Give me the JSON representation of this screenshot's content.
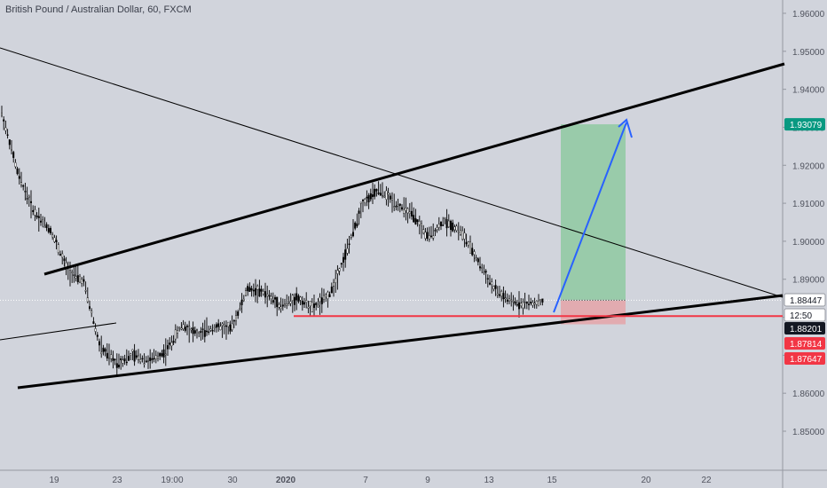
{
  "chart_data": {
    "type": "candlestick",
    "title": "British Pound / Australian Dollar, 60, FXCM",
    "background": "#d1d4dc",
    "grid": false,
    "ylim": [
      1.8425,
      1.9645
    ],
    "y_ticks": [
      1.85,
      1.86,
      1.87,
      1.88,
      1.89,
      1.9,
      1.91,
      1.92,
      1.93,
      1.94,
      1.95,
      1.96
    ],
    "y_tick_labels": [
      "1.85000",
      "1.86000",
      "1.87000",
      "1.88000",
      "1.89000",
      "1.90000",
      "1.91000",
      "1.92000",
      "1.93000",
      "1.94000",
      "1.95000",
      "1.96000"
    ],
    "x_ticks": [
      {
        "label": "19",
        "bold": false
      },
      {
        "label": "23",
        "bold": false
      },
      {
        "label": "19:00",
        "bold": false
      },
      {
        "label": "30",
        "bold": false
      },
      {
        "label": "2020",
        "bold": true
      },
      {
        "label": "7",
        "bold": false
      },
      {
        "label": "9",
        "bold": false
      },
      {
        "label": "13",
        "bold": false
      },
      {
        "label": "15",
        "bold": false
      },
      {
        "label": "20",
        "bold": false
      },
      {
        "label": "22",
        "bold": false
      }
    ],
    "price_path": [
      [
        1.9355,
        1.932
      ],
      [
        1.914,
        1.921
      ],
      [
        1.909,
        1.906
      ],
      [
        1.904,
        1.9015
      ],
      [
        1.894,
        1.891
      ],
      [
        1.8935,
        1.885
      ],
      [
        1.876,
        1.868
      ],
      [
        1.867,
        1.869
      ],
      [
        1.869,
        1.871
      ],
      [
        1.87,
        1.867
      ],
      [
        1.87,
        1.872
      ],
      [
        1.874,
        1.882
      ],
      [
        1.874,
        1.877
      ],
      [
        1.879,
        1.876
      ],
      [
        1.879,
        1.875
      ],
      [
        1.887,
        1.888
      ],
      [
        1.889,
        1.884
      ],
      [
        1.886,
        1.88
      ],
      [
        1.884,
        1.886
      ],
      [
        1.883,
        1.882
      ],
      [
        1.885,
        1.887
      ],
      [
        1.895,
        1.899
      ],
      [
        1.908,
        1.912
      ],
      [
        1.915,
        1.912
      ],
      [
        1.912,
        1.908
      ],
      [
        1.907,
        1.907
      ],
      [
        1.903,
        1.899
      ],
      [
        1.905,
        1.906
      ],
      [
        1.904,
        1.901
      ],
      [
        1.898,
        1.892
      ],
      [
        1.888,
        1.887
      ],
      [
        1.886,
        1.882
      ],
      [
        1.883,
        1.884
      ],
      [
        1.885,
        1.883
      ]
    ],
    "markers": [
      {
        "label": "1.88447",
        "color": "#ffffff",
        "text_color": "#131722",
        "outline": true,
        "value": 1.88447
      },
      {
        "label": "12:50",
        "color": "#ffffff",
        "text_color": "#131722",
        "outline": true,
        "value": 1.8818
      },
      {
        "label": "1.88201",
        "color": "#131722",
        "text_color": "#ffffff",
        "outline": false,
        "value": 1.88201
      },
      {
        "label": "1.93079",
        "color": "#089981",
        "text_color": "#ffffff",
        "outline": false,
        "value": 1.93079
      },
      {
        "label": "1.87814",
        "color": "#f23645",
        "text_color": "#ffffff",
        "outline": false,
        "value": 1.87814
      },
      {
        "label": "1.87647",
        "color": "#f23645",
        "text_color": "#ffffff",
        "outline": false,
        "value": 1.87647
      }
    ],
    "drawings": {
      "support_line_color": "#000000",
      "horizontal_level_color": "#f23645",
      "horizontal_level": 1.8803,
      "projection_arrow_color": "#2962ff",
      "profit_zone": {
        "entry": 1.88447,
        "target": 1.93079,
        "color": "#8bc89d"
      },
      "loss_zone": {
        "entry": 1.88447,
        "stop": 1.87814,
        "color": "#e5a3a8"
      }
    }
  }
}
